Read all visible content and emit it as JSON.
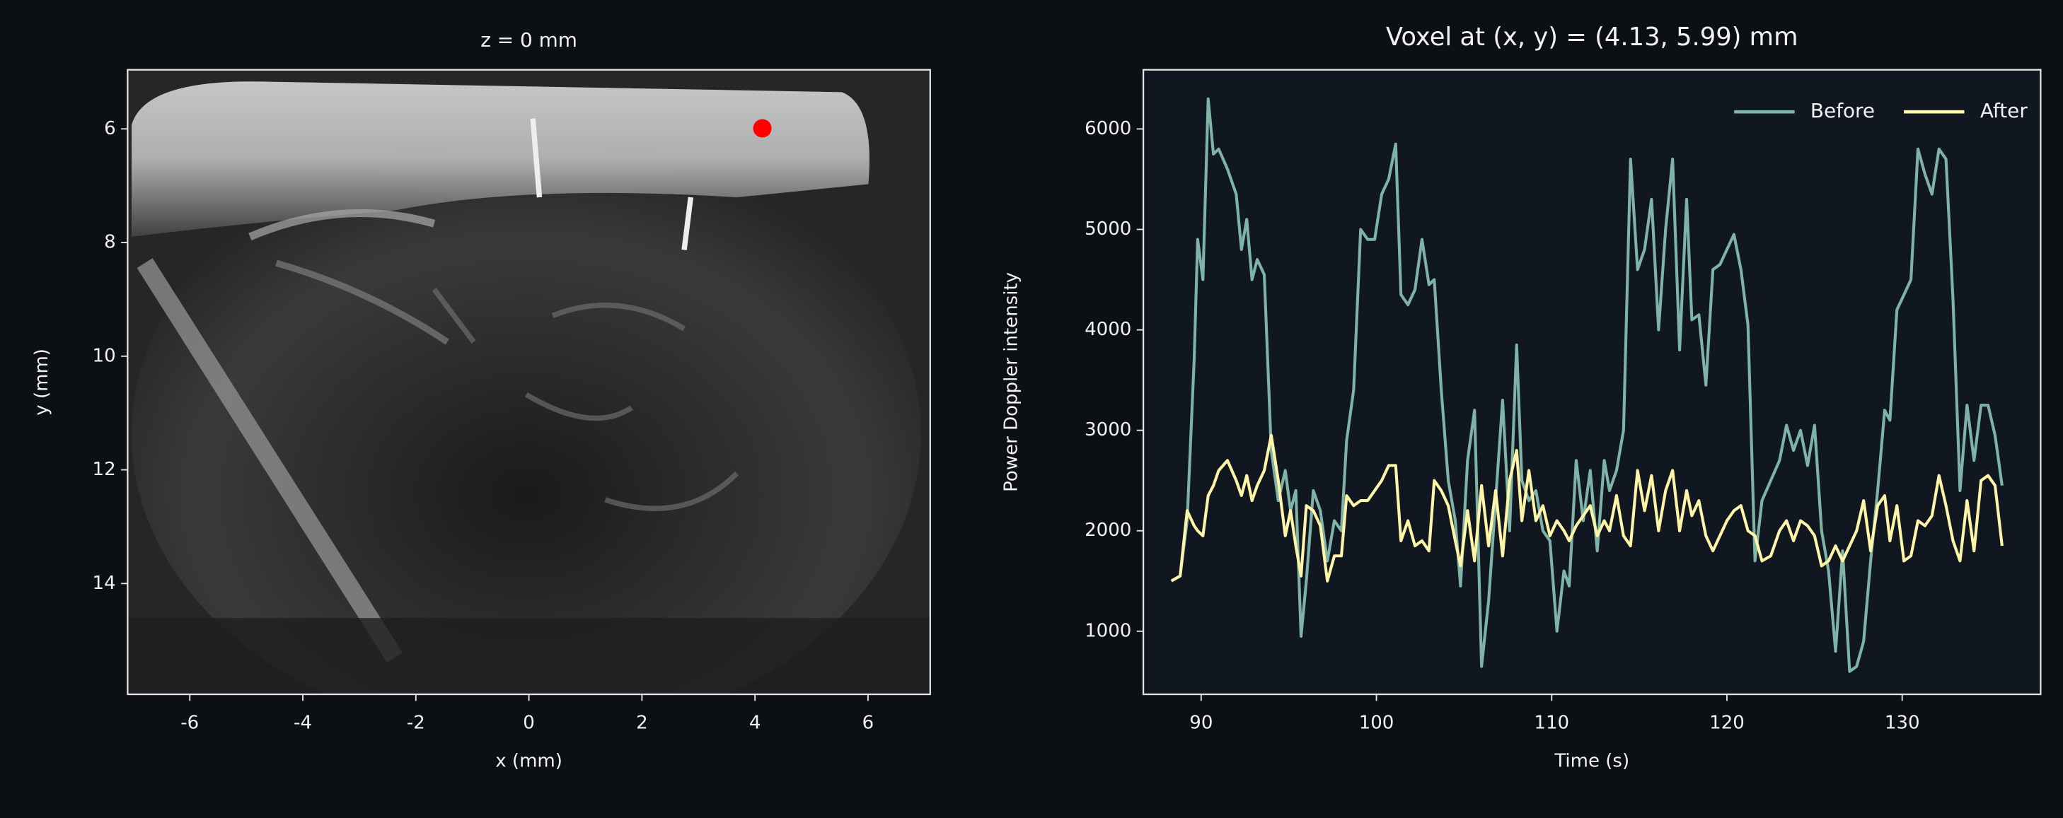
{
  "chart_data": [
    {
      "type": "image",
      "title": "z = 0 mm",
      "xlabel": "x (mm)",
      "ylabel": "y (mm)",
      "xlim": [
        -7.1,
        7.1
      ],
      "ylim": [
        15.95,
        4.96
      ],
      "xticks": [
        -6,
        -4,
        -2,
        0,
        2,
        4,
        6
      ],
      "yticks": [
        6,
        8,
        10,
        12,
        14
      ],
      "point": {
        "x": 4.13,
        "y": 5.99,
        "color": "#ff0000"
      }
    },
    {
      "type": "line",
      "title": "Voxel at (x, y) = (4.13, 5.99) mm",
      "xlabel": "Time (s)",
      "ylabel": "Power Doppler intensity",
      "xlim": [
        86.7,
        137.9
      ],
      "ylim": [
        372,
        6589
      ],
      "xticks": [
        90,
        100,
        110,
        120,
        130
      ],
      "yticks": [
        1000,
        2000,
        3000,
        4000,
        5000,
        6000
      ],
      "legend": "upper right",
      "x": [
        88.3,
        88.8,
        89.2,
        89.6,
        89.8,
        90.1,
        90.4,
        90.7,
        91.0,
        91.5,
        92.0,
        92.3,
        92.6,
        92.9,
        93.2,
        93.6,
        94.0,
        94.4,
        94.8,
        95.1,
        95.4,
        95.7,
        96.0,
        96.4,
        96.8,
        97.2,
        97.6,
        98.0,
        98.3,
        98.7,
        99.1,
        99.5,
        99.9,
        100.3,
        100.7,
        101.1,
        101.4,
        101.8,
        102.2,
        102.6,
        103.0,
        103.3,
        103.7,
        104.1,
        104.5,
        104.8,
        105.2,
        105.6,
        106.0,
        106.4,
        106.8,
        107.2,
        107.6,
        108.0,
        108.3,
        108.7,
        109.1,
        109.5,
        109.9,
        110.3,
        110.7,
        111.0,
        111.4,
        111.8,
        112.2,
        112.6,
        113.0,
        113.3,
        113.7,
        114.1,
        114.5,
        114.9,
        115.3,
        115.7,
        116.1,
        116.5,
        116.9,
        117.3,
        117.7,
        118.0,
        118.4,
        118.8,
        119.2,
        119.6,
        120.0,
        120.4,
        120.8,
        121.2,
        121.6,
        122.0,
        122.5,
        123.0,
        123.4,
        123.8,
        124.2,
        124.6,
        125.0,
        125.4,
        125.8,
        126.2,
        126.6,
        127.0,
        127.4,
        127.8,
        128.2,
        128.6,
        129.0,
        129.3,
        129.7,
        130.1,
        130.5,
        130.9,
        131.3,
        131.7,
        132.1,
        132.5,
        132.9,
        133.3,
        133.7,
        134.1,
        134.5,
        134.9,
        135.3,
        135.7
      ],
      "series": [
        {
          "name": "Before",
          "color": "#7fb3a8",
          "values": [
            1500,
            1550,
            2100,
            3700,
            4900,
            4500,
            6300,
            5750,
            5800,
            5600,
            5350,
            4800,
            5100,
            4500,
            4700,
            4550,
            2800,
            2300,
            2600,
            2200,
            2400,
            950,
            1500,
            2400,
            2200,
            1700,
            2100,
            2000,
            2900,
            3400,
            5000,
            4900,
            4900,
            5350,
            5500,
            5850,
            4350,
            4250,
            4400,
            4900,
            4450,
            4500,
            3400,
            2500,
            2100,
            1450,
            2700,
            3200,
            650,
            1300,
            2300,
            3300,
            2000,
            3850,
            2500,
            2300,
            2400,
            2000,
            1900,
            1000,
            1600,
            1450,
            2700,
            2100,
            2600,
            1800,
            2700,
            2400,
            2600,
            3000,
            5700,
            4600,
            4800,
            5300,
            4000,
            5000,
            5700,
            3800,
            5300,
            4100,
            4150,
            3450,
            4600,
            4650,
            4800,
            4950,
            4600,
            4050,
            1700,
            2300,
            2500,
            2700,
            3050,
            2800,
            3000,
            2650,
            3050,
            2000,
            1600,
            800,
            1800,
            600,
            650,
            900,
            1700,
            2400,
            3200,
            3100,
            4200,
            4350,
            4500,
            5800,
            5550,
            5350,
            5800,
            5700,
            4300,
            2400,
            3250,
            2700,
            3250,
            3250,
            2950,
            2450
          ]
        },
        {
          "name": "After",
          "color": "#fff5a8",
          "values": [
            1500,
            1550,
            2200,
            2050,
            2000,
            1950,
            2350,
            2450,
            2600,
            2700,
            2500,
            2350,
            2550,
            2300,
            2450,
            2600,
            2950,
            2500,
            1950,
            2200,
            1850,
            1550,
            2250,
            2200,
            2050,
            1500,
            1750,
            1750,
            2350,
            2250,
            2300,
            2300,
            2400,
            2500,
            2650,
            2650,
            1900,
            2100,
            1850,
            1900,
            1800,
            2500,
            2400,
            2250,
            1900,
            1650,
            2200,
            1700,
            2450,
            1850,
            2400,
            1750,
            2500,
            2800,
            2100,
            2600,
            2100,
            2250,
            1950,
            2100,
            2000,
            1900,
            2050,
            2150,
            2250,
            1950,
            2100,
            2000,
            2350,
            1950,
            1850,
            2600,
            2200,
            2550,
            2000,
            2400,
            2600,
            2000,
            2400,
            2150,
            2300,
            1950,
            1800,
            1950,
            2100,
            2200,
            2250,
            2000,
            1950,
            1700,
            1750,
            2000,
            2100,
            1900,
            2100,
            2050,
            1950,
            1650,
            1700,
            1850,
            1700,
            1850,
            2000,
            2300,
            1800,
            2250,
            2350,
            1900,
            2250,
            1700,
            1750,
            2100,
            2050,
            2150,
            2550,
            2250,
            1900,
            1700,
            2300,
            1800,
            2500,
            2550,
            2450,
            1850
          ]
        }
      ]
    }
  ]
}
